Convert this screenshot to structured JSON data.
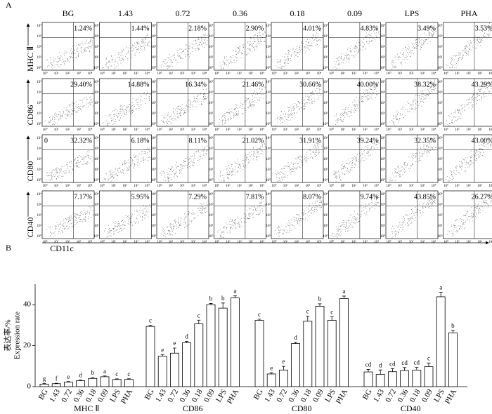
{
  "panel_a": {
    "label": "A",
    "columns": [
      "BG",
      "1.43",
      "0.72",
      "0.36",
      "0.18",
      "0.09",
      "LPS",
      "PHA"
    ],
    "rows": [
      {
        "label": "MHC Ⅱ",
        "values": [
          "1.24%",
          "1.44%",
          "2.18%",
          "2.90%",
          "4.01%",
          "4.83%",
          "3.49%",
          "3.53%"
        ]
      },
      {
        "label": "CD86",
        "values": [
          "29.40%",
          "14.88%",
          "16.34%",
          "21.46%",
          "30.66%",
          "40.00%",
          "38.32%",
          "43.29%"
        ]
      },
      {
        "label": "CD80",
        "values": [
          "32.32%",
          "6.18%",
          "8.11%",
          "21.02%",
          "31.91%",
          "39.24%",
          "32.35%",
          "43.00%"
        ],
        "corner_label": "0"
      },
      {
        "label": "CD40",
        "values": [
          "7.17%",
          "5.95%",
          "7.29%",
          "7.81%",
          "8.07%",
          "9.74%",
          "43.85%",
          "26.27%"
        ]
      }
    ],
    "tick_labels": [
      "10⁰",
      "10¹",
      "10²",
      "10³",
      "10⁴"
    ],
    "x_axis_label": "CD11c"
  },
  "chart_data": {
    "type": "bar",
    "label": "B",
    "y_label": "表达率/%",
    "y_label_en": "Expression rate",
    "categories": [
      "BG",
      "1.43",
      "0.72",
      "0.36",
      "0.18",
      "0.09",
      "LPS",
      "PHA"
    ],
    "ylim": [
      0,
      50
    ],
    "yticks": [
      0,
      20,
      40
    ],
    "color": "#ffffff",
    "series": [
      {
        "name": "MHC Ⅱ",
        "values": [
          1.24,
          1.44,
          2.18,
          2.9,
          4.01,
          4.83,
          3.49,
          3.53
        ],
        "errors": [
          0.3,
          0.2,
          0.3,
          0.3,
          0.4,
          0.4,
          0.3,
          0.3
        ],
        "letters": [
          "g",
          "f",
          "e",
          "d",
          "b",
          "a",
          "c",
          "c"
        ]
      },
      {
        "name": "CD86",
        "values": [
          29.4,
          14.88,
          16.34,
          21.46,
          30.66,
          40.0,
          38.32,
          43.29
        ],
        "errors": [
          0.6,
          0.8,
          2.5,
          0.6,
          1.8,
          0.6,
          2.5,
          1.0
        ],
        "letters": [
          "c",
          "e",
          "e",
          "d",
          "c",
          "b",
          "b",
          "a"
        ]
      },
      {
        "name": "CD80",
        "values": [
          32.32,
          6.18,
          8.11,
          21.02,
          31.91,
          39.24,
          32.35,
          43.0
        ],
        "errors": [
          0.6,
          0.6,
          1.8,
          0.6,
          2.5,
          1.2,
          1.8,
          1.2
        ],
        "letters": [
          "c",
          "e",
          "e",
          "d",
          "c",
          "b",
          "c",
          "a"
        ]
      },
      {
        "name": "CD40",
        "values": [
          7.17,
          5.95,
          7.29,
          7.81,
          8.07,
          9.74,
          43.85,
          26.27
        ],
        "errors": [
          1.2,
          2.2,
          1.5,
          1.5,
          1.3,
          1.8,
          2.2,
          1.2
        ],
        "letters": [
          "cd",
          "d",
          "cd",
          "cd",
          "cd",
          "c",
          "a",
          "b"
        ]
      }
    ]
  }
}
